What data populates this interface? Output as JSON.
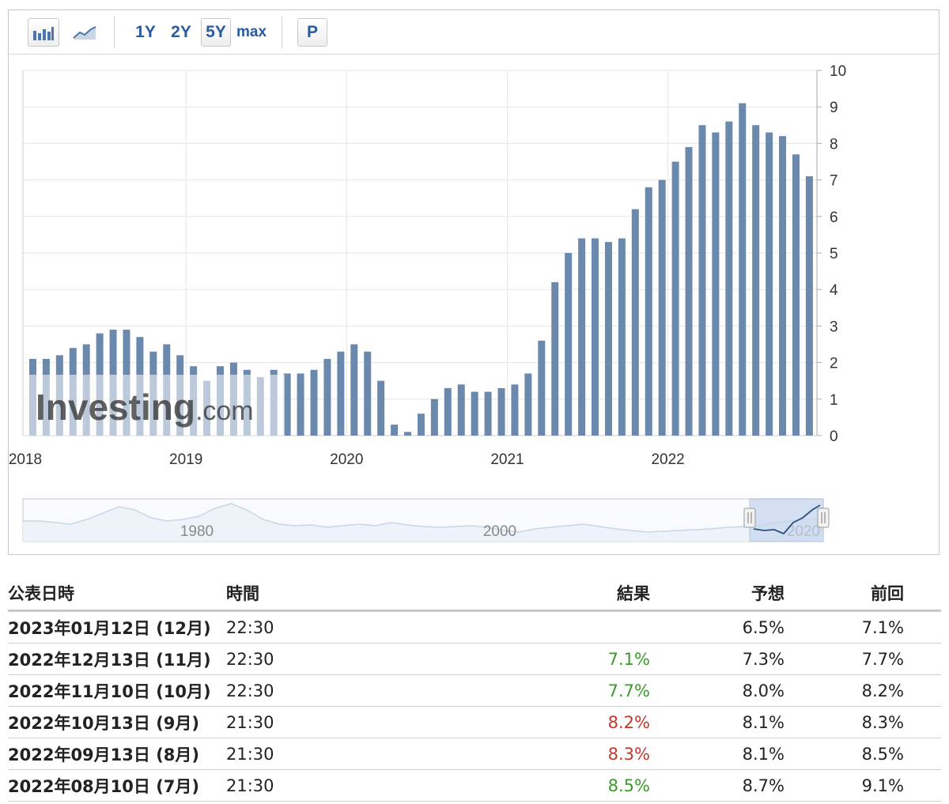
{
  "toolbar": {
    "bar_chart_icon": "bar-chart-icon",
    "line_chart_icon": "line-chart-icon",
    "range_buttons": [
      "1Y",
      "2Y",
      "5Y",
      "max"
    ],
    "active_range": "5Y",
    "p_button": "P"
  },
  "watermark": "Investing.com",
  "chart_data": {
    "type": "bar",
    "x_tick_labels": [
      "2018",
      "2019",
      "2020",
      "2021",
      "2022"
    ],
    "y_ticks": [
      0,
      1,
      2,
      3,
      4,
      5,
      6,
      7,
      8,
      9,
      10
    ],
    "ylim": [
      0,
      10
    ],
    "grid": true,
    "bar_color": "#6b88ad",
    "x_start": "2018-01",
    "values": [
      2.1,
      2.1,
      2.2,
      2.4,
      2.5,
      2.8,
      2.9,
      2.9,
      2.7,
      2.3,
      2.5,
      2.2,
      1.9,
      1.5,
      1.9,
      2.0,
      1.8,
      1.6,
      1.8,
      1.7,
      1.7,
      1.8,
      2.1,
      2.3,
      2.5,
      2.3,
      1.5,
      0.3,
      0.1,
      0.6,
      1.0,
      1.3,
      1.4,
      1.2,
      1.2,
      1.3,
      1.4,
      1.7,
      2.6,
      4.2,
      5.0,
      5.4,
      5.4,
      5.3,
      5.4,
      6.2,
      6.8,
      7.0,
      7.5,
      7.9,
      8.5,
      8.3,
      8.6,
      9.1,
      8.5,
      8.3,
      8.2,
      7.7,
      7.1
    ]
  },
  "navigator": {
    "labels": [
      "1980",
      "2000",
      "2020"
    ]
  },
  "table": {
    "headers": {
      "date": "公表日時",
      "time": "時間",
      "actual": "結果",
      "forecast": "予想",
      "previous": "前回"
    },
    "rows": [
      {
        "date": "2023年01月12日 (12月)",
        "time": "22:30",
        "actual": "",
        "actual_status": "",
        "forecast": "6.5%",
        "previous": "7.1%"
      },
      {
        "date": "2022年12月13日 (11月)",
        "time": "22:30",
        "actual": "7.1%",
        "actual_status": "green",
        "forecast": "7.3%",
        "previous": "7.7%"
      },
      {
        "date": "2022年11月10日 (10月)",
        "time": "22:30",
        "actual": "7.7%",
        "actual_status": "green",
        "forecast": "8.0%",
        "previous": "8.2%"
      },
      {
        "date": "2022年10月13日 (9月)",
        "time": "21:30",
        "actual": "8.2%",
        "actual_status": "red",
        "forecast": "8.1%",
        "previous": "8.3%"
      },
      {
        "date": "2022年09月13日 (8月)",
        "time": "21:30",
        "actual": "8.3%",
        "actual_status": "red",
        "forecast": "8.1%",
        "previous": "8.5%"
      },
      {
        "date": "2022年08月10日 (7月)",
        "time": "21:30",
        "actual": "8.5%",
        "actual_status": "green",
        "forecast": "8.7%",
        "previous": "9.1%"
      }
    ]
  }
}
